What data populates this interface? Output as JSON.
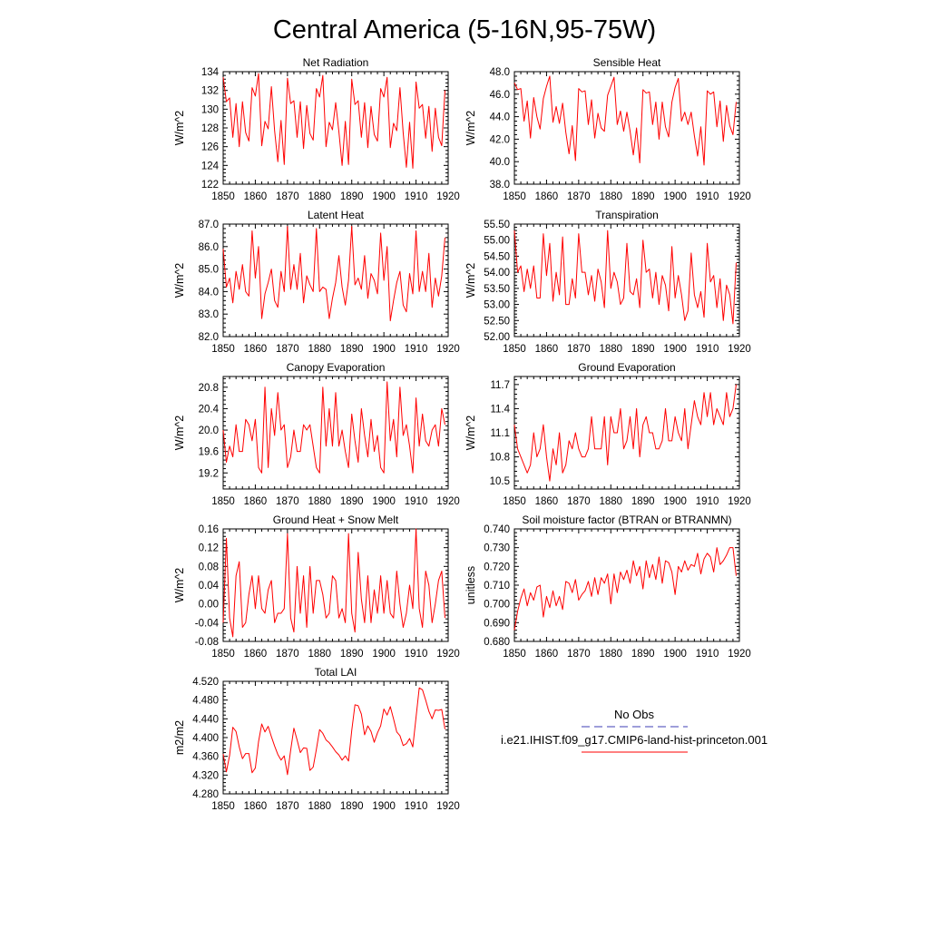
{
  "figure": {
    "title": "Central America (5-16N,95-75W)",
    "line_color": "#ff0000",
    "obs_color": "#3c3cb4"
  },
  "legend": {
    "obs_label": "No Obs",
    "model_label": "i.e21.IHIST.f09_g17.CMIP6-land-hist-princeton.001"
  },
  "chart_data": [
    {
      "type": "line",
      "title": "Net Radiation",
      "ylabel": "W/m^2",
      "xlim": [
        1850,
        1920
      ],
      "ylim": [
        122,
        134
      ],
      "xticks": [
        "1850",
        "1860",
        "1870",
        "1880",
        "1890",
        "1900",
        "1910",
        "1920"
      ],
      "yticks": [
        "122",
        "124",
        "126",
        "128",
        "130",
        "132",
        "134"
      ],
      "x_start": 1850,
      "values": [
        133.4,
        130.8,
        131.2,
        127.0,
        130.6,
        126.0,
        130.8,
        127.5,
        126.6,
        132.3,
        131.4,
        133.8,
        126.1,
        128.7,
        127.9,
        132.4,
        127.7,
        124.4,
        128.8,
        124.1,
        133.3,
        130.6,
        130.9,
        127.0,
        130.8,
        125.8,
        130.4,
        127.4,
        126.7,
        132.2,
        131.3,
        133.6,
        126.0,
        128.6,
        127.8,
        130.7,
        127.6,
        124.0,
        128.7,
        124.1,
        133.2,
        130.5,
        130.9,
        127.0,
        130.7,
        125.9,
        130.3,
        127.3,
        126.6,
        132.2,
        131.3,
        133.4,
        125.9,
        128.5,
        127.7,
        132.3,
        127.5,
        123.8,
        128.6,
        123.7,
        132.9,
        130.1,
        130.5,
        126.9,
        130.3,
        125.5,
        130.1,
        127.0,
        126.1,
        132.0
      ]
    },
    {
      "type": "line",
      "title": "Sensible Heat",
      "ylabel": "W/m^2",
      "xlim": [
        1850,
        1920
      ],
      "ylim": [
        38,
        48
      ],
      "xticks": [
        "1850",
        "1860",
        "1870",
        "1880",
        "1890",
        "1900",
        "1910",
        "1920"
      ],
      "yticks": [
        "38.0",
        "40.0",
        "42.0",
        "44.0",
        "46.0",
        "48.0"
      ],
      "x_start": 1850,
      "values": [
        47.0,
        46.4,
        46.5,
        43.6,
        45.4,
        42.1,
        45.7,
        44.0,
        42.9,
        45.6,
        46.7,
        47.6,
        43.5,
        44.9,
        43.4,
        45.2,
        42.6,
        40.7,
        43.2,
        40.1,
        46.5,
        46.2,
        46.3,
        43.3,
        45.5,
        42.1,
        44.3,
        43.0,
        42.7,
        45.9,
        46.7,
        47.5,
        43.3,
        44.5,
        42.7,
        44.4,
        42.7,
        40.6,
        43.0,
        39.9,
        46.4,
        46.1,
        46.2,
        43.3,
        45.3,
        42.0,
        45.3,
        43.1,
        42.2,
        45.3,
        46.6,
        47.4,
        43.6,
        44.4,
        43.3,
        44.4,
        42.3,
        40.5,
        43.1,
        39.7,
        46.3,
        46.0,
        46.2,
        43.1,
        45.4,
        41.8,
        45.0,
        43.2,
        42.4,
        45.3
      ]
    },
    {
      "type": "line",
      "title": "Latent Heat",
      "ylabel": "W/m^2",
      "xlim": [
        1850,
        1920
      ],
      "ylim": [
        82,
        87
      ],
      "xticks": [
        "1850",
        "1860",
        "1870",
        "1880",
        "1890",
        "1900",
        "1910",
        "1920"
      ],
      "yticks": [
        "82.0",
        "83.0",
        "84.0",
        "85.0",
        "86.0",
        "87.0"
      ],
      "x_start": 1850,
      "values": [
        85.9,
        84.2,
        84.6,
        83.5,
        84.9,
        84.1,
        85.2,
        84.0,
        83.8,
        86.7,
        84.6,
        86.0,
        82.8,
        83.9,
        84.4,
        85.0,
        83.6,
        83.3,
        84.9,
        84.0,
        86.9,
        84.1,
        85.2,
        84.1,
        85.7,
        83.5,
        84.7,
        84.3,
        84.0,
        86.8,
        84.0,
        84.2,
        84.1,
        82.8,
        83.7,
        84.4,
        85.6,
        84.2,
        83.4,
        84.5,
        86.9,
        84.3,
        84.6,
        84.1,
        85.6,
        83.7,
        84.8,
        84.5,
        83.9,
        86.6,
        84.5,
        86.0,
        82.7,
        83.6,
        84.4,
        84.9,
        83.4,
        83.1,
        84.8,
        83.9,
        86.7,
        84.0,
        84.9,
        84.0,
        85.7,
        83.3,
        84.6,
        83.8,
        84.7,
        86.4
      ]
    },
    {
      "type": "line",
      "title": "Transpiration",
      "ylabel": "W/m^2",
      "xlim": [
        1850,
        1920
      ],
      "ylim": [
        52,
        55.5
      ],
      "xticks": [
        "1850",
        "1860",
        "1870",
        "1880",
        "1890",
        "1900",
        "1910",
        "1920"
      ],
      "yticks": [
        "52.00",
        "52.50",
        "53.00",
        "53.50",
        "54.00",
        "54.50",
        "55.00",
        "55.50"
      ],
      "x_start": 1850,
      "values": [
        55.3,
        54.0,
        54.2,
        53.4,
        54.1,
        53.5,
        54.2,
        53.2,
        53.2,
        55.2,
        53.9,
        54.9,
        53.1,
        54.0,
        53.3,
        55.1,
        53.0,
        53.0,
        53.8,
        53.2,
        55.2,
        54.0,
        54.0,
        53.3,
        53.9,
        53.1,
        54.1,
        53.7,
        52.9,
        55.3,
        53.5,
        54.0,
        53.7,
        53.0,
        53.2,
        54.9,
        53.4,
        53.3,
        53.8,
        52.9,
        55.0,
        54.0,
        54.1,
        53.2,
        54.0,
        53.0,
        53.9,
        53.6,
        52.8,
        54.8,
        53.2,
        53.9,
        53.3,
        52.5,
        52.8,
        54.6,
        53.3,
        52.9,
        53.4,
        52.6,
        54.9,
        53.7,
        53.9,
        52.9,
        53.8,
        52.5,
        53.6,
        53.3,
        52.4,
        54.3
      ]
    },
    {
      "type": "line",
      "title": "Canopy Evaporation",
      "ylabel": "W/m^2",
      "xlim": [
        1850,
        1920
      ],
      "ylim": [
        18.9,
        21.0
      ],
      "xticks": [
        "1850",
        "1860",
        "1870",
        "1880",
        "1890",
        "1900",
        "1910",
        "1920"
      ],
      "yticks": [
        "19.2",
        "19.6",
        "20.0",
        "20.4",
        "20.8"
      ],
      "x_start": 1850,
      "values": [
        20.0,
        19.4,
        19.7,
        19.5,
        20.1,
        19.6,
        19.6,
        20.2,
        20.1,
        19.8,
        20.2,
        19.3,
        19.2,
        20.8,
        19.3,
        20.4,
        19.9,
        20.7,
        20.0,
        20.1,
        19.3,
        19.5,
        20.0,
        19.6,
        19.6,
        20.1,
        20.0,
        20.1,
        19.7,
        19.3,
        19.2,
        20.8,
        19.7,
        20.4,
        19.7,
        20.7,
        19.7,
        20.0,
        19.6,
        19.3,
        20.3,
        19.8,
        19.4,
        20.4,
        19.9,
        19.5,
        20.2,
        19.6,
        19.9,
        19.3,
        19.2,
        20.9,
        19.8,
        20.2,
        19.5,
        20.8,
        19.9,
        20.1,
        19.7,
        19.2,
        20.6,
        19.7,
        20.3,
        19.8,
        19.7,
        20.0,
        20.1,
        19.7,
        20.4,
        20.1
      ]
    },
    {
      "type": "line",
      "title": "Ground Evaporation",
      "ylabel": "W/m^2",
      "xlim": [
        1850,
        1920
      ],
      "ylim": [
        10.4,
        11.8
      ],
      "xticks": [
        "1850",
        "1860",
        "1870",
        "1880",
        "1890",
        "1900",
        "1910",
        "1920"
      ],
      "yticks": [
        "10.5",
        "10.8",
        "11.1",
        "11.4",
        "11.7"
      ],
      "x_start": 1850,
      "values": [
        11.2,
        10.9,
        10.8,
        10.7,
        10.6,
        10.7,
        11.1,
        10.8,
        10.9,
        11.2,
        10.8,
        10.5,
        10.9,
        10.7,
        11.1,
        10.6,
        10.7,
        11.0,
        10.9,
        11.1,
        10.9,
        10.8,
        10.8,
        10.9,
        11.3,
        10.9,
        10.9,
        10.9,
        11.3,
        10.7,
        11.3,
        11.1,
        11.1,
        11.4,
        10.9,
        11.0,
        11.3,
        10.9,
        11.4,
        10.8,
        11.2,
        11.3,
        11.1,
        11.1,
        10.9,
        10.9,
        11.0,
        11.4,
        11.0,
        11.0,
        11.3,
        11.1,
        11.0,
        11.4,
        10.9,
        11.2,
        11.5,
        11.3,
        11.2,
        11.6,
        11.3,
        11.6,
        11.2,
        11.4,
        11.3,
        11.2,
        11.6,
        11.3,
        11.4,
        11.7
      ]
    },
    {
      "type": "line",
      "title": "Ground Heat + Snow Melt",
      "ylabel": "W/m^2",
      "xlim": [
        1850,
        1920
      ],
      "ylim": [
        -0.08,
        0.16
      ],
      "xticks": [
        "1850",
        "1860",
        "1870",
        "1880",
        "1890",
        "1900",
        "1910",
        "1920"
      ],
      "yticks": [
        "-0.08",
        "-0.04",
        "0.00",
        "0.04",
        "0.08",
        "0.12",
        "0.16"
      ],
      "x_start": 1850,
      "values": [
        -0.04,
        0.14,
        -0.03,
        -0.07,
        0.06,
        0.09,
        -0.05,
        -0.04,
        0.02,
        0.06,
        -0.01,
        0.06,
        -0.01,
        -0.02,
        0.03,
        0.05,
        -0.04,
        -0.02,
        -0.02,
        -0.01,
        0.15,
        -0.03,
        -0.06,
        0.08,
        -0.02,
        0.06,
        -0.05,
        0.08,
        -0.02,
        0.05,
        0.05,
        0.02,
        -0.03,
        -0.02,
        0.06,
        0.05,
        -0.03,
        -0.01,
        -0.04,
        0.15,
        -0.02,
        -0.06,
        0.11,
        0.01,
        -0.04,
        0.06,
        -0.04,
        0.03,
        -0.02,
        0.06,
        -0.02,
        0.05,
        -0.02,
        -0.03,
        0.07,
        0.0,
        -0.05,
        -0.02,
        0.04,
        -0.01,
        0.16,
        -0.01,
        -0.05,
        0.07,
        0.04,
        -0.04,
        0.0,
        0.05,
        0.07,
        -0.03
      ]
    },
    {
      "type": "line",
      "title": "Soil moisture factor (BTRAN or BTRANMN)",
      "ylabel": "unitless",
      "xlim": [
        1850,
        1920
      ],
      "ylim": [
        0.68,
        0.74
      ],
      "xticks": [
        "1850",
        "1860",
        "1870",
        "1880",
        "1890",
        "1900",
        "1910",
        "1920"
      ],
      "yticks": [
        "0.680",
        "0.690",
        "0.700",
        "0.710",
        "0.720",
        "0.730",
        "0.740"
      ],
      "x_start": 1850,
      "values": [
        0.686,
        0.696,
        0.703,
        0.708,
        0.699,
        0.706,
        0.702,
        0.709,
        0.71,
        0.693,
        0.704,
        0.698,
        0.707,
        0.699,
        0.704,
        0.697,
        0.712,
        0.711,
        0.706,
        0.713,
        0.702,
        0.705,
        0.707,
        0.712,
        0.704,
        0.714,
        0.705,
        0.714,
        0.711,
        0.716,
        0.7,
        0.716,
        0.706,
        0.717,
        0.713,
        0.718,
        0.711,
        0.723,
        0.715,
        0.72,
        0.708,
        0.723,
        0.714,
        0.721,
        0.713,
        0.725,
        0.711,
        0.723,
        0.722,
        0.717,
        0.705,
        0.72,
        0.717,
        0.723,
        0.718,
        0.721,
        0.72,
        0.727,
        0.716,
        0.724,
        0.727,
        0.725,
        0.717,
        0.73,
        0.721,
        0.723,
        0.726,
        0.73,
        0.73,
        0.715
      ]
    },
    {
      "type": "line",
      "title": "Total LAI",
      "ylabel": "m2/m2",
      "xlim": [
        1850,
        1920
      ],
      "ylim": [
        4.28,
        4.52
      ],
      "xticks": [
        "1850",
        "1860",
        "1870",
        "1880",
        "1890",
        "1900",
        "1910",
        "1920"
      ],
      "yticks": [
        "4.280",
        "4.320",
        "4.360",
        "4.400",
        "4.440",
        "4.480",
        "4.520"
      ],
      "x_start": 1850,
      "values": [
        4.365,
        4.327,
        4.362,
        4.422,
        4.413,
        4.38,
        4.355,
        4.366,
        4.366,
        4.325,
        4.335,
        4.391,
        4.429,
        4.412,
        4.424,
        4.402,
        4.382,
        4.364,
        4.352,
        4.361,
        4.321,
        4.373,
        4.42,
        4.395,
        4.368,
        4.378,
        4.377,
        4.33,
        4.337,
        4.375,
        4.417,
        4.409,
        4.395,
        4.389,
        4.38,
        4.37,
        4.363,
        4.352,
        4.361,
        4.35,
        4.415,
        4.47,
        4.468,
        4.45,
        4.406,
        4.425,
        4.413,
        4.39,
        4.41,
        4.425,
        4.461,
        4.448,
        4.466,
        4.44,
        4.412,
        4.404,
        4.383,
        4.387,
        4.398,
        4.38,
        4.443,
        4.506,
        4.502,
        4.48,
        4.456,
        4.44,
        4.459,
        4.458,
        4.46,
        4.418
      ]
    }
  ]
}
